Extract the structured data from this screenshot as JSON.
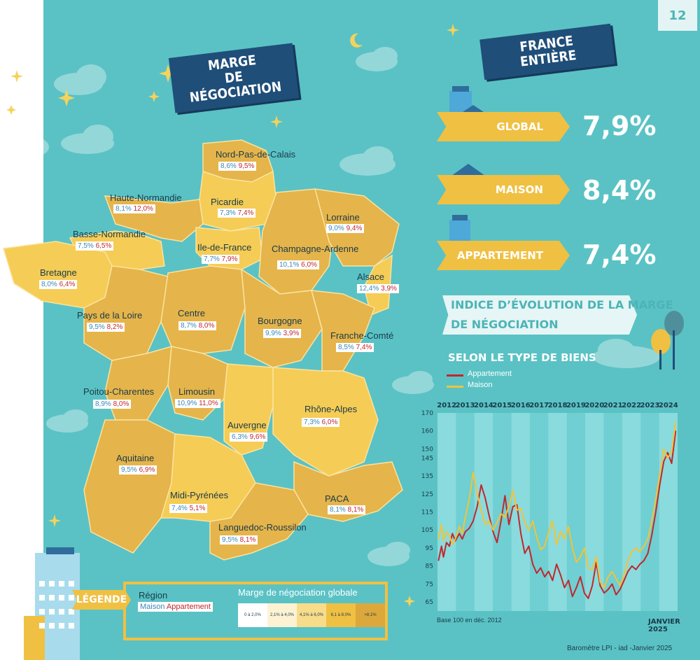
{
  "page_number": "12",
  "title_marge": [
    "MARGE",
    "DE NÉGOCIATION"
  ],
  "title_france": "FRANCE ENTIÈRE",
  "kpis": [
    {
      "label": "GLOBAL",
      "value": "7,9%"
    },
    {
      "label": "MAISON",
      "value": "8,4%"
    },
    {
      "label": "APPARTEMENT",
      "value": "7,4%"
    }
  ],
  "indice_title": [
    "INDICE D’ÉVOLUTION DE LA MARGE",
    "DE NÉGOCIATION"
  ],
  "selon": "SELON LE TYPE DE BIENS",
  "colors": {
    "teal": "#5ac2c4",
    "navy": "#1f4e79",
    "gold": "#f0c043",
    "appartement": "#c1272d",
    "maison": "#f0c43a",
    "map_light": "#f5cc55",
    "map_mid": "#e5b44a",
    "map_dark": "#d6a43e"
  },
  "regions": [
    {
      "name": "Nord-Pas-de-Calais",
      "maison": "8,6%",
      "appartement": "9,5%"
    },
    {
      "name": "Haute-Normandie",
      "maison": "8,1%",
      "appartement": "12,0%"
    },
    {
      "name": "Picardie",
      "maison": "7,3%",
      "appartement": "7,4%"
    },
    {
      "name": "Lorraine",
      "maison": "9,0%",
      "appartement": "9,4%"
    },
    {
      "name": "Basse-Normandie",
      "maison": "7,5%",
      "appartement": "6,5%"
    },
    {
      "name": "Ile-de-France",
      "maison": "7,7%",
      "appartement": "7,9%"
    },
    {
      "name": "Champagne-Ardenne",
      "maison": "10,1%",
      "appartement": "6,0%"
    },
    {
      "name": "Bretagne",
      "maison": "8,0%",
      "appartement": "6,4%"
    },
    {
      "name": "Alsace",
      "maison": "12,4%",
      "appartement": "3,9%"
    },
    {
      "name": "Pays de la Loire",
      "maison": "9,5%",
      "appartement": "8,2%"
    },
    {
      "name": "Centre",
      "maison": "8,7%",
      "appartement": "8,0%"
    },
    {
      "name": "Bourgogne",
      "maison": "9,9%",
      "appartement": "3,9%"
    },
    {
      "name": "Franche-Comté",
      "maison": "8,5%",
      "appartement": "7,4%"
    },
    {
      "name": "Poitou-Charentes",
      "maison": "8,9%",
      "appartement": "8,0%"
    },
    {
      "name": "Limousin",
      "maison": "10,9%",
      "appartement": "11,0%"
    },
    {
      "name": "Rhône-Alpes",
      "maison": "7,3%",
      "appartement": "6,0%"
    },
    {
      "name": "Auvergne",
      "maison": "6,3%",
      "appartement": "9,6%"
    },
    {
      "name": "Aquitaine",
      "maison": "9,5%",
      "appartement": "6,9%"
    },
    {
      "name": "Midi-Pyrénées",
      "maison": "7,4%",
      "appartement": "5,1%"
    },
    {
      "name": "PACA",
      "maison": "8,1%",
      "appartement": "8,1%"
    },
    {
      "name": "Languedoc-Roussilon",
      "maison": "9,5%",
      "appartement": "8,1%"
    }
  ],
  "legend": {
    "tag": "LÉGENDE",
    "region": "Région",
    "maison": "Maison",
    "appartement": "Appartement",
    "scale_title": "Marge de négociation globale",
    "scale": [
      "0 à 2,0%",
      "2,1% à 4,0%",
      "4,1% à 6,0%",
      "6,1 à 8,0%",
      ">8,1%"
    ],
    "scale_colors": [
      "#ffffff",
      "#fdf3d3",
      "#f8dc8a",
      "#f0c043",
      "#dca83c"
    ]
  },
  "chart_data": {
    "type": "line",
    "title": "INDICE D’ÉVOLUTION DE LA MARGE DE NÉGOCIATION",
    "subtitle": "SELON LE TYPE DE BIENS",
    "x_tick_labels": [
      "2012",
      "2013",
      "2014",
      "2015",
      "2016",
      "2017",
      "2018",
      "2019",
      "2020",
      "2021",
      "2022",
      "2023",
      "2024"
    ],
    "x_range": [
      2012.9,
      2025.0
    ],
    "ylim": [
      60,
      170
    ],
    "y_ticks": [
      65,
      75,
      85,
      95,
      105,
      115,
      125,
      135,
      145,
      150,
      160,
      170
    ],
    "grid": "alternating vertical bands per year",
    "legend_position": "top-left",
    "note": "Base 100 en déc. 2012",
    "date_label": "JANVIER 2025",
    "series": [
      {
        "name": "Appartement",
        "x": [
          2012.95,
          2013.1,
          2013.2,
          2013.35,
          2013.5,
          2013.65,
          2013.8,
          2014.0,
          2014.15,
          2014.3,
          2014.5,
          2014.7,
          2014.9,
          2015.1,
          2015.3,
          2015.5,
          2015.7,
          2015.9,
          2016.1,
          2016.3,
          2016.5,
          2016.7,
          2016.9,
          2017.1,
          2017.3,
          2017.5,
          2017.7,
          2017.9,
          2018.1,
          2018.3,
          2018.5,
          2018.7,
          2018.9,
          2019.1,
          2019.3,
          2019.5,
          2019.7,
          2019.9,
          2020.1,
          2020.3,
          2020.5,
          2020.7,
          2020.9,
          2021.1,
          2021.3,
          2021.5,
          2021.7,
          2021.9,
          2022.1,
          2022.3,
          2022.5,
          2022.7,
          2022.9,
          2023.1,
          2023.3,
          2023.5,
          2023.7,
          2023.9,
          2024.1,
          2024.3,
          2024.5,
          2024.7,
          2024.9
        ],
        "y": [
          88,
          96,
          90,
          98,
          96,
          103,
          99,
          103,
          100,
          104,
          106,
          110,
          118,
          130,
          123,
          113,
          104,
          98,
          110,
          124,
          108,
          118,
          119,
          103,
          92,
          96,
          86,
          81,
          84,
          79,
          82,
          77,
          86,
          80,
          73,
          77,
          68,
          73,
          79,
          70,
          67,
          74,
          87,
          74,
          70,
          72,
          75,
          69,
          72,
          77,
          82,
          85,
          83,
          86,
          88,
          92,
          102,
          115,
          130,
          143,
          148,
          142,
          160
        ]
      },
      {
        "name": "Maison",
        "x": [
          2012.95,
          2013.1,
          2013.2,
          2013.35,
          2013.5,
          2013.65,
          2013.8,
          2014.0,
          2014.15,
          2014.3,
          2014.5,
          2014.7,
          2014.9,
          2015.1,
          2015.3,
          2015.5,
          2015.7,
          2015.9,
          2016.1,
          2016.3,
          2016.5,
          2016.7,
          2016.9,
          2017.1,
          2017.3,
          2017.5,
          2017.7,
          2017.9,
          2018.1,
          2018.3,
          2018.5,
          2018.7,
          2018.9,
          2019.1,
          2019.3,
          2019.5,
          2019.7,
          2019.9,
          2020.1,
          2020.3,
          2020.5,
          2020.7,
          2020.9,
          2021.1,
          2021.3,
          2021.5,
          2021.7,
          2021.9,
          2022.1,
          2022.3,
          2022.5,
          2022.7,
          2022.9,
          2023.1,
          2023.3,
          2023.5,
          2023.7,
          2023.9,
          2024.1,
          2024.3,
          2024.5,
          2024.7,
          2024.9
        ],
        "y": [
          100,
          108,
          99,
          104,
          102,
          97,
          100,
          107,
          103,
          112,
          122,
          137,
          125,
          116,
          108,
          110,
          105,
          109,
          114,
          112,
          118,
          127,
          116,
          117,
          109,
          105,
          110,
          101,
          94,
          96,
          104,
          110,
          97,
          104,
          100,
          107,
          95,
          87,
          90,
          95,
          84,
          83,
          90,
          76,
          73,
          79,
          82,
          78,
          74,
          80,
          88,
          93,
          95,
          93,
          96,
          100,
          110,
          122,
          136,
          150,
          145,
          148,
          165
        ]
      }
    ]
  },
  "base_note": "Base 100 en déc. 2012",
  "date_label": "JANVIER 2025",
  "source": "Baromètre LPI - iad -Janvier 2025"
}
